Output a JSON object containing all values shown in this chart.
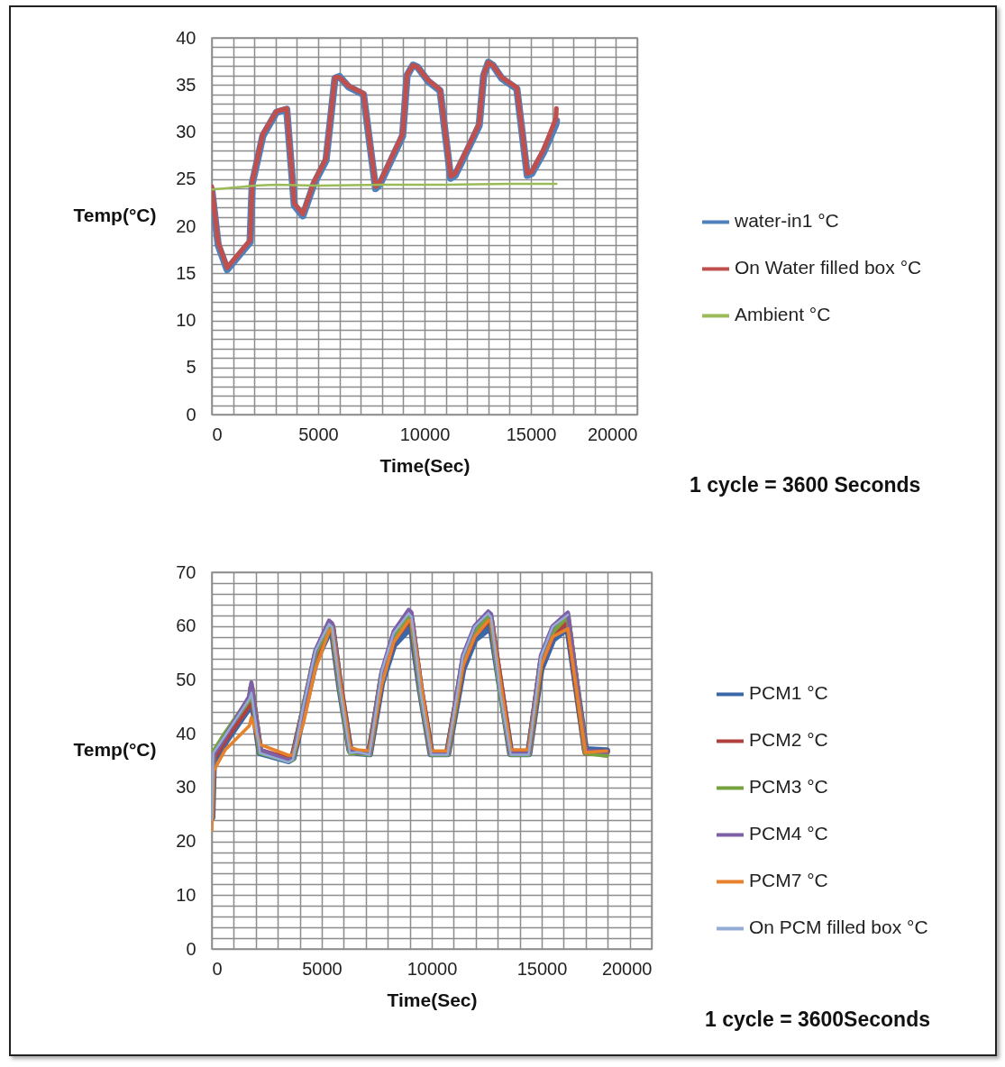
{
  "chart_data": [
    {
      "type": "line",
      "xlabel": "Time(Sec)",
      "ylabel": "Temp(°C)",
      "annotations": [
        "1 cycle = 3600 Seconds"
      ],
      "legend": "right",
      "grid": true,
      "xlim": [
        0,
        20000
      ],
      "ylim": [
        0,
        40
      ],
      "xticks": [
        0,
        {
          "value": 1000,
          "label": null
        },
        {
          "value": 2000,
          "label": null
        },
        {
          "value": 3000,
          "label": null
        },
        {
          "value": 4000,
          "label": null
        },
        5000,
        {
          "value": 6000,
          "label": null
        },
        {
          "value": 7000,
          "label": null
        },
        {
          "value": 8000,
          "label": null
        },
        {
          "value": 9000,
          "label": null
        },
        10000,
        {
          "value": 11000,
          "label": null
        },
        {
          "value": 12000,
          "label": null
        },
        {
          "value": 13000,
          "label": null
        },
        {
          "value": 14000,
          "label": null
        },
        15000,
        {
          "value": 16000,
          "label": null
        },
        {
          "value": 17000,
          "label": null
        },
        {
          "value": 18000,
          "label": null
        },
        {
          "value": 19000,
          "label": null
        },
        20000
      ],
      "yticks": [
        0,
        {
          "value": 1,
          "label": null
        },
        {
          "value": 2,
          "label": null
        },
        {
          "value": 3,
          "label": null
        },
        {
          "value": 4,
          "label": null
        },
        5,
        {
          "value": 6,
          "label": null
        },
        {
          "value": 7,
          "label": null
        },
        {
          "value": 8,
          "label": null
        },
        {
          "value": 9,
          "label": null
        },
        10,
        {
          "value": 11,
          "label": null
        },
        {
          "value": 12,
          "label": null
        },
        {
          "value": 13,
          "label": null
        },
        {
          "value": 14,
          "label": null
        },
        15,
        {
          "value": 16,
          "label": null
        },
        {
          "value": 17,
          "label": null
        },
        {
          "value": 18,
          "label": null
        },
        {
          "value": 19,
          "label": null
        },
        20,
        {
          "value": 21,
          "label": null
        },
        {
          "value": 22,
          "label": null
        },
        {
          "value": 23,
          "label": null
        },
        {
          "value": 24,
          "label": null
        },
        25,
        {
          "value": 26,
          "label": null
        },
        {
          "value": 27,
          "label": null
        },
        {
          "value": 28,
          "label": null
        },
        {
          "value": 29,
          "label": null
        },
        30,
        {
          "value": 31,
          "label": null
        },
        {
          "value": 32,
          "label": null
        },
        {
          "value": 33,
          "label": null
        },
        {
          "value": 34,
          "label": null
        },
        35,
        {
          "value": 36,
          "label": null
        },
        {
          "value": 37,
          "label": null
        },
        {
          "value": 38,
          "label": null
        },
        {
          "value": 39,
          "label": null
        },
        40
      ],
      "series": [
        {
          "name": "water-in1 °C",
          "color": "#4f81bd",
          "x": [
            0,
            300,
            720,
            1800,
            1900,
            2400,
            3040,
            3520,
            3880,
            4280,
            4800,
            5370,
            5790,
            6000,
            6430,
            7130,
            7700,
            7910,
            8970,
            9180,
            9460,
            9670,
            10170,
            10730,
            11230,
            11440,
            12000,
            12570,
            12780,
            13000,
            13210,
            13630,
            14340,
            14830,
            15040,
            15610,
            16170,
            16200
          ],
          "values": [
            23.8,
            18,
            15.4,
            18.3,
            24.5,
            29.6,
            32.1,
            32.4,
            22.2,
            21.1,
            24.5,
            27,
            35.7,
            35.9,
            34.8,
            34,
            24,
            24.5,
            29.6,
            36,
            37.1,
            36.9,
            35.4,
            34.4,
            25.1,
            25.4,
            28,
            30.7,
            36,
            37.4,
            37.1,
            35.7,
            34.6,
            25.4,
            25.6,
            27.9,
            30.8,
            31.2
          ]
        },
        {
          "name": "On Water filled box °C",
          "color": "#c0504d",
          "x": [
            0,
            300,
            720,
            1800,
            1900,
            2400,
            3040,
            3520,
            3880,
            4280,
            4800,
            5370,
            5790,
            6000,
            6430,
            7130,
            7700,
            7910,
            8970,
            9180,
            9460,
            9670,
            10170,
            10730,
            11230,
            11440,
            12000,
            12570,
            12780,
            13000,
            13210,
            13630,
            14340,
            14830,
            15040,
            15610,
            16170,
            16200
          ],
          "values": [
            24.2,
            18.3,
            15.6,
            18.5,
            24.7,
            29.8,
            32.2,
            32.5,
            22.4,
            21.3,
            24.7,
            27.2,
            35.8,
            35.8,
            34.9,
            34.1,
            24.2,
            24.7,
            29.8,
            36.1,
            37.1,
            36.9,
            35.5,
            34.5,
            25.3,
            25.6,
            28.2,
            30.9,
            36.1,
            37.4,
            37.1,
            35.8,
            34.7,
            25.6,
            25.8,
            28.2,
            31.4,
            32.5
          ]
        },
        {
          "name": "Ambient °C",
          "color": "#9bbb59",
          "x": [
            0,
            1000,
            2000,
            3000,
            5000,
            8000,
            11000,
            14000,
            16200
          ],
          "values": [
            23.9,
            24.1,
            24.3,
            24.4,
            24.3,
            24.4,
            24.4,
            24.5,
            24.5
          ]
        }
      ]
    },
    {
      "type": "line",
      "xlabel": "Time(Sec)",
      "ylabel": "Temp(°C)",
      "annotations": [
        "1 cycle = 3600Seconds"
      ],
      "legend": "right",
      "grid": true,
      "xlim": [
        0,
        20000
      ],
      "ylim": [
        0,
        70
      ],
      "xticks": [
        0,
        {
          "value": 1000,
          "label": null
        },
        {
          "value": 2000,
          "label": null
        },
        {
          "value": 3000,
          "label": null
        },
        {
          "value": 4000,
          "label": null
        },
        5000,
        {
          "value": 6000,
          "label": null
        },
        {
          "value": 7000,
          "label": null
        },
        {
          "value": 8000,
          "label": null
        },
        {
          "value": 9000,
          "label": null
        },
        10000,
        {
          "value": 11000,
          "label": null
        },
        {
          "value": 12000,
          "label": null
        },
        {
          "value": 13000,
          "label": null
        },
        {
          "value": 14000,
          "label": null
        },
        15000,
        {
          "value": 16000,
          "label": null
        },
        {
          "value": 17000,
          "label": null
        },
        {
          "value": 18000,
          "label": null
        },
        {
          "value": 19000,
          "label": null
        },
        20000
      ],
      "yticks": [
        0,
        {
          "value": 2,
          "label": null
        },
        {
          "value": 4,
          "label": null
        },
        {
          "value": 6,
          "label": null
        },
        {
          "value": 8,
          "label": null
        },
        10,
        {
          "value": 12,
          "label": null
        },
        {
          "value": 14,
          "label": null
        },
        {
          "value": 16,
          "label": null
        },
        {
          "value": 18,
          "label": null
        },
        20,
        {
          "value": 22,
          "label": null
        },
        {
          "value": 24,
          "label": null
        },
        {
          "value": 26,
          "label": null
        },
        {
          "value": 28,
          "label": null
        },
        30,
        {
          "value": 32,
          "label": null
        },
        {
          "value": 34,
          "label": null
        },
        {
          "value": 36,
          "label": null
        },
        {
          "value": 38,
          "label": null
        },
        40,
        {
          "value": 42,
          "label": null
        },
        {
          "value": 44,
          "label": null
        },
        {
          "value": 46,
          "label": null
        },
        {
          "value": 48,
          "label": null
        },
        50,
        {
          "value": 52,
          "label": null
        },
        {
          "value": 54,
          "label": null
        },
        {
          "value": 56,
          "label": null
        },
        {
          "value": 58,
          "label": null
        },
        60,
        {
          "value": 62,
          "label": null
        },
        {
          "value": 64,
          "label": null
        },
        {
          "value": 66,
          "label": null
        },
        {
          "value": 68,
          "label": null
        },
        70
      ],
      "x": [
        0,
        70,
        610,
        1710,
        1800,
        2190,
        3480,
        3690,
        4170,
        4710,
        5330,
        5470,
        5810,
        6280,
        6620,
        7170,
        7720,
        8270,
        8950,
        9080,
        9490,
        9970,
        10720,
        11410,
        11950,
        12570,
        12700,
        13110,
        13590,
        14410,
        14960,
        15500,
        16190,
        16990,
        17950
      ],
      "series": [
        {
          "name": "PCM1 °C",
          "color": "#3a67a8",
          "values": [
            24.5,
            35,
            38.5,
            45,
            47.5,
            36.5,
            35,
            35.5,
            44,
            53.5,
            59,
            59.5,
            49,
            37,
            36.5,
            36.3,
            49.5,
            56.5,
            59.5,
            59.8,
            48,
            36.3,
            36.3,
            52,
            57.5,
            59.5,
            59.8,
            49,
            36.3,
            36.3,
            52,
            57.5,
            59.8,
            37,
            36.8
          ]
        },
        {
          "name": "PCM2 °C",
          "color": "#b0413e",
          "values": [
            24.5,
            35.5,
            39,
            45.5,
            48.5,
            36.8,
            35.3,
            35.7,
            44.5,
            54.5,
            60,
            60,
            49.5,
            37,
            36.6,
            36.4,
            50.5,
            57.5,
            61,
            61,
            48.5,
            36.4,
            36.4,
            53,
            58.5,
            61,
            61,
            49.5,
            36.4,
            36.4,
            53,
            58.5,
            61,
            36.5,
            36.5
          ]
        },
        {
          "name": "PCM3 °C",
          "color": "#77a33f",
          "values": [
            24.5,
            36.5,
            40,
            46.5,
            49,
            36.5,
            35,
            35.3,
            45,
            55,
            60.5,
            60,
            49,
            36.5,
            36.5,
            36.2,
            51,
            58,
            62,
            61.5,
            48,
            36.2,
            36.2,
            53.5,
            59,
            62,
            61.5,
            48,
            36.2,
            36.2,
            53.5,
            59,
            62,
            36.5,
            36
          ]
        },
        {
          "name": "PCM4 °C",
          "color": "#7f5fa6",
          "values": [
            24.5,
            36,
            39.5,
            47,
            49.5,
            37,
            35,
            35.5,
            45,
            55.5,
            61,
            60.5,
            49.5,
            36.8,
            36.6,
            36.3,
            51.5,
            59,
            63,
            62.5,
            48.5,
            36.3,
            36.3,
            54.5,
            60,
            62.7,
            62.2,
            48.5,
            36.3,
            36.3,
            54.5,
            60,
            62.5,
            36.8,
            36.6
          ]
        },
        {
          "name": "PCM7 °C",
          "color": "#e8812b",
          "values": [
            22,
            33,
            37,
            41.5,
            43,
            38,
            36,
            36,
            42,
            52,
            59,
            59.5,
            50,
            37.5,
            37,
            36.8,
            49,
            57,
            61,
            61,
            50,
            36.8,
            36.8,
            52.5,
            58,
            61,
            61,
            50,
            37,
            37,
            52.5,
            58,
            59.5,
            36.5,
            36.8
          ]
        },
        {
          "name": "On PCM filled box °C",
          "color": "#93acd6",
          "x": [
            0,
            70,
            610,
            1710,
            1800,
            2190,
            3480,
            3690,
            4170,
            4710,
            5330,
            5470,
            5810,
            6280,
            6620,
            7170,
            7720,
            8270,
            8950,
            9080,
            9490,
            9970,
            10720,
            11410,
            11950,
            12570,
            12700,
            13110,
            13590,
            14410,
            14960,
            15500,
            16190
          ],
          "values": [
            24.1,
            36.4,
            39.7,
            46.5,
            47.6,
            36.4,
            34.7,
            35.2,
            45.3,
            55.4,
            60.4,
            59.8,
            48.7,
            36.4,
            36.6,
            36.1,
            51.5,
            58.7,
            62.4,
            61.7,
            47.6,
            36.1,
            36.1,
            54.3,
            59.9,
            62.4,
            61.6,
            47.6,
            36.1,
            36.1,
            54.3,
            59.9,
            62.1
          ]
        }
      ]
    }
  ]
}
